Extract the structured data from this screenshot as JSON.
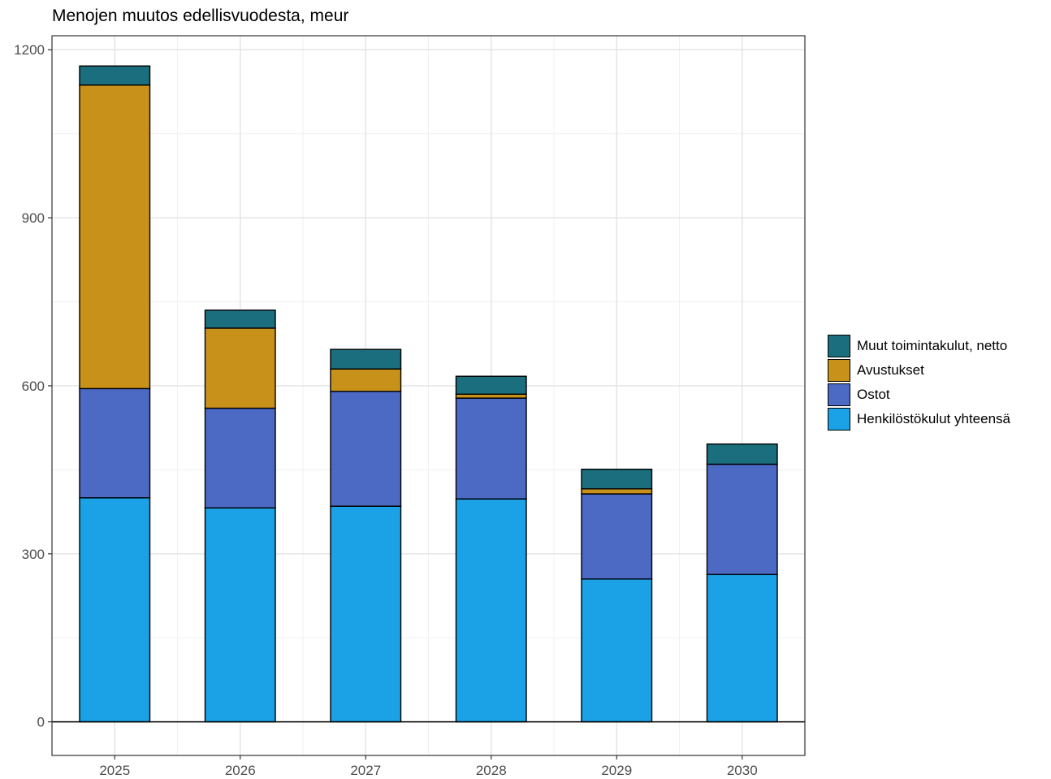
{
  "chart_data": {
    "type": "bar",
    "stacked": true,
    "title": "Menojen muutos edellisvuodesta, meur",
    "xlabel": "",
    "ylabel": "",
    "categories": [
      "2025",
      "2026",
      "2027",
      "2028",
      "2029",
      "2030"
    ],
    "ylim": [
      -60,
      1225
    ],
    "yticks": [
      0,
      300,
      600,
      900,
      1200
    ],
    "grid": true,
    "legend_position": "right",
    "series": [
      {
        "name": "Henkilöstökulut yhteensä",
        "color": "#1aa1e6",
        "values": [
          400,
          382,
          385,
          398,
          255,
          263
        ]
      },
      {
        "name": "Ostot",
        "color": "#4c69c4",
        "values": [
          195,
          178,
          205,
          180,
          152,
          197
        ]
      },
      {
        "name": "Avustukset",
        "color": "#c8911a",
        "values": [
          542,
          143,
          40,
          7,
          9,
          0
        ]
      },
      {
        "name": "Muut toimintakulut, netto",
        "color": "#1b6e7d",
        "values": [
          34,
          32,
          35,
          32,
          35,
          36
        ]
      }
    ]
  }
}
